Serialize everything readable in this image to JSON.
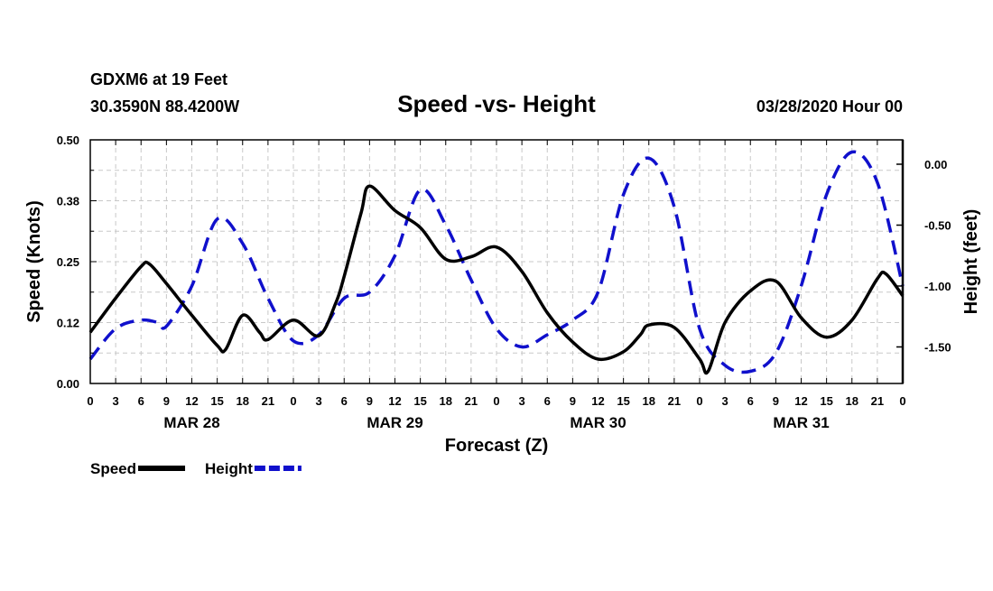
{
  "header": {
    "station_line1": "GDXM6 at 19 Feet",
    "station_line2": "30.3590N 88.4200W",
    "title": "Speed -vs- Height",
    "datetime": "03/28/2020 Hour 00"
  },
  "chart_data": {
    "type": "line",
    "title": "Speed -vs- Height",
    "xlabel": "Forecast (Z)",
    "ylabel": "Speed (Knots)",
    "y2label": "Height (feet)",
    "grid": true,
    "x_ticks": [
      "0",
      "3",
      "6",
      "9",
      "12",
      "15",
      "18",
      "21",
      "0",
      "3",
      "6",
      "9",
      "12",
      "15",
      "18",
      "21",
      "0",
      "3",
      "6",
      "9",
      "12",
      "15",
      "18",
      "21",
      "0",
      "3",
      "6",
      "9",
      "12",
      "15",
      "18",
      "21",
      "0"
    ],
    "x_hours": [
      0,
      3,
      6,
      9,
      12,
      15,
      18,
      21,
      24,
      27,
      30,
      33,
      36,
      39,
      42,
      45,
      48,
      51,
      54,
      57,
      60,
      63,
      66,
      69,
      72,
      75,
      78,
      81,
      84,
      87,
      90,
      93,
      96
    ],
    "date_labels": [
      {
        "label": "MAR 28",
        "hour": 12
      },
      {
        "label": "MAR 29",
        "hour": 36
      },
      {
        "label": "MAR 30",
        "hour": 60
      },
      {
        "label": "MAR 31",
        "hour": 84
      }
    ],
    "xlim": [
      0,
      96
    ],
    "ylim": [
      0,
      0.5
    ],
    "y_ticks": [
      "0.00",
      "0.12",
      "0.25",
      "0.38",
      "0.50"
    ],
    "y_tick_values": [
      0,
      0.125,
      0.25,
      0.375,
      0.5
    ],
    "y2lim": [
      -1.8,
      0.2
    ],
    "y2_ticks": [
      "0.00",
      "-0.50",
      "-1.00",
      "-1.50"
    ],
    "y2_tick_values": [
      0,
      -0.5,
      -1.0,
      -1.5
    ],
    "series": [
      {
        "name": "Speed",
        "axis": "left",
        "color": "#000000",
        "dash": false,
        "x": [
          0,
          3,
          6,
          7,
          9,
          12,
          15,
          16,
          18,
          20,
          21,
          24,
          27,
          29,
          30,
          32,
          33,
          36,
          39,
          42,
          45,
          48,
          51,
          54,
          57,
          60,
          63,
          65,
          66,
          69,
          72,
          73,
          75,
          78,
          81,
          84,
          87,
          90,
          93,
          94,
          96
        ],
        "values": [
          0.105,
          0.175,
          0.24,
          0.245,
          0.205,
          0.14,
          0.078,
          0.07,
          0.14,
          0.105,
          0.09,
          0.13,
          0.098,
          0.165,
          0.22,
          0.35,
          0.405,
          0.355,
          0.32,
          0.255,
          0.26,
          0.28,
          0.23,
          0.145,
          0.085,
          0.05,
          0.065,
          0.1,
          0.12,
          0.115,
          0.05,
          0.025,
          0.125,
          0.19,
          0.21,
          0.135,
          0.095,
          0.13,
          0.215,
          0.225,
          0.18
        ]
      },
      {
        "name": "Height",
        "axis": "right",
        "color": "#1010cc",
        "dash": true,
        "x": [
          0,
          3,
          6,
          8,
          9,
          12,
          15,
          18,
          21,
          24,
          27,
          30,
          33,
          36,
          39,
          42,
          45,
          48,
          51,
          54,
          57,
          60,
          63,
          66,
          69,
          72,
          75,
          78,
          81,
          84,
          87,
          90,
          93,
          96
        ],
        "values": [
          -1.6,
          -1.35,
          -1.28,
          -1.3,
          -1.33,
          -1.0,
          -0.45,
          -0.65,
          -1.1,
          -1.45,
          -1.4,
          -1.1,
          -1.05,
          -0.75,
          -0.21,
          -0.5,
          -0.95,
          -1.35,
          -1.5,
          -1.4,
          -1.28,
          -1.05,
          -0.25,
          0.05,
          -0.35,
          -1.35,
          -1.65,
          -1.7,
          -1.55,
          -1.0,
          -0.25,
          0.1,
          -0.15,
          -1.0
        ]
      }
    ],
    "legend": [
      {
        "label": "Speed",
        "color": "#000000",
        "dash": false
      },
      {
        "label": "Height",
        "color": "#1010cc",
        "dash": true
      }
    ],
    "legend_position": "bottom-left"
  }
}
